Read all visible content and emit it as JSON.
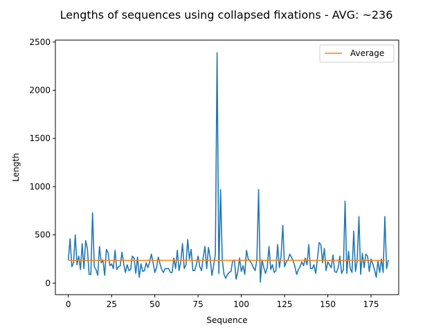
{
  "chart_data": {
    "type": "line",
    "title": "Lengths of sequences using collapsed fixations - AVG: ~236",
    "xlabel": "Sequence",
    "ylabel": "Length",
    "xlim": [
      -7.5,
      191
    ],
    "ylim": [
      -120,
      2520
    ],
    "xticks": [
      0,
      25,
      50,
      75,
      100,
      125,
      150,
      175
    ],
    "yticks": [
      0,
      500,
      1000,
      1500,
      2000,
      2500
    ],
    "grid": false,
    "legend": {
      "position": "top-right",
      "entries": [
        "Average"
      ]
    },
    "series": [
      {
        "name": "",
        "color": "#1f77b4",
        "values": [
          240,
          460,
          170,
          210,
          500,
          190,
          280,
          140,
          410,
          150,
          440,
          360,
          90,
          90,
          730,
          170,
          140,
          80,
          380,
          210,
          240,
          80,
          350,
          310,
          180,
          200,
          150,
          340,
          140,
          170,
          180,
          320,
          200,
          110,
          190,
          130,
          140,
          280,
          260,
          100,
          270,
          60,
          200,
          120,
          130,
          210,
          160,
          220,
          300,
          210,
          110,
          160,
          270,
          200,
          140,
          110,
          150,
          150,
          150,
          110,
          110,
          260,
          150,
          340,
          130,
          220,
          410,
          150,
          190,
          450,
          250,
          350,
          130,
          130,
          190,
          280,
          170,
          130,
          270,
          380,
          150,
          370,
          260,
          80,
          180,
          300,
          2390,
          100,
          970,
          240,
          90,
          50,
          90,
          110,
          120,
          230,
          240,
          40,
          120,
          260,
          120,
          180,
          90,
          340,
          250,
          230,
          200,
          160,
          130,
          240,
          970,
          10,
          240,
          160,
          100,
          160,
          380,
          140,
          190,
          110,
          130,
          400,
          160,
          280,
          600,
          170,
          220,
          240,
          300,
          270,
          230,
          170,
          90,
          140,
          170,
          220,
          180,
          260,
          190,
          400,
          150,
          150,
          190,
          100,
          250,
          420,
          400,
          210,
          360,
          130,
          220,
          190,
          160,
          290,
          120,
          110,
          160,
          280,
          100,
          140,
          850,
          100,
          330,
          150,
          110,
          540,
          120,
          230,
          690,
          90,
          310,
          160,
          300,
          280,
          120,
          250,
          200,
          140,
          60,
          230,
          110,
          250,
          110,
          690,
          150,
          240
        ],
        "count": 184
      },
      {
        "name": "Average",
        "color": "#ff7f0e",
        "x": [
          0,
          183
        ],
        "values": [
          236,
          236
        ]
      }
    ]
  }
}
